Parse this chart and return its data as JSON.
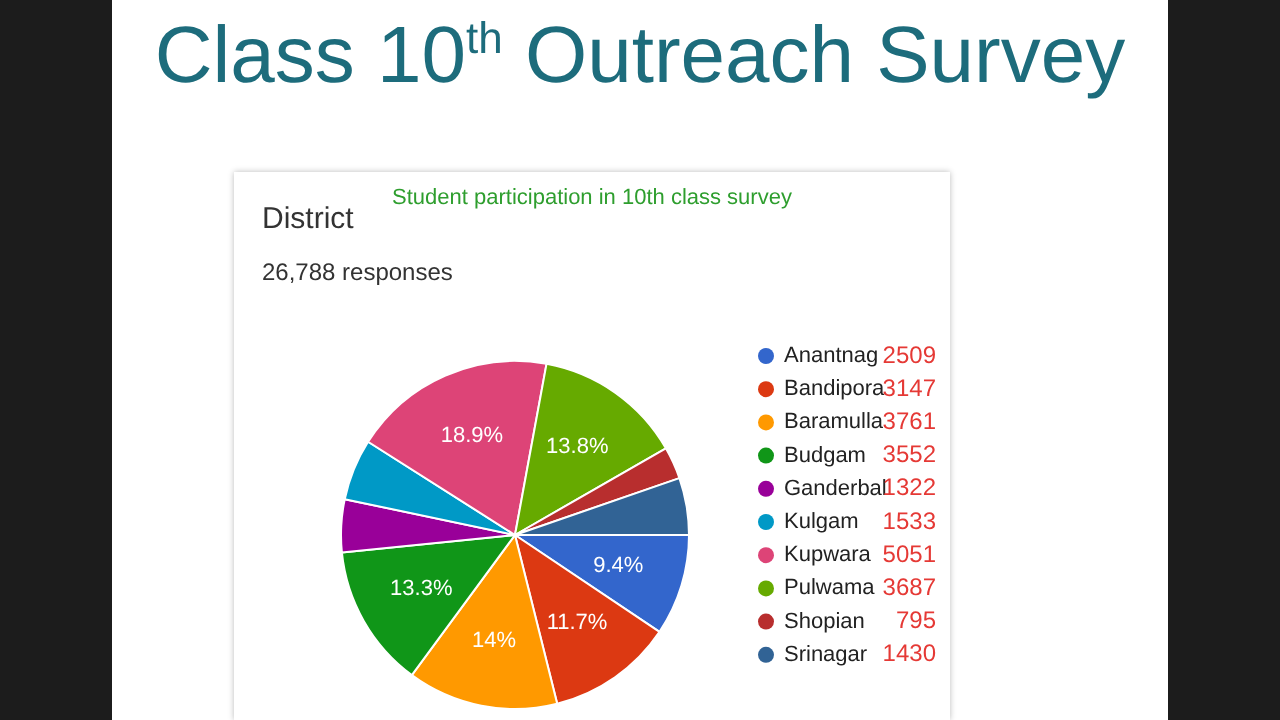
{
  "chart_data": {
    "type": "pie",
    "title": "Class 10$^{th}$ Outreach Survey",
    "subtitle": "Student participation in 10th class survey",
    "annotations": [
      "District",
      "26,788 responses",
      "2509",
      "3147",
      "3761",
      "3552",
      "1322",
      "1533",
      "5051",
      "3687",
      "795",
      "1430"
    ],
    "categories": [
      "Anantnag",
      "Bandipora",
      "Baramulla",
      "Budgam",
      "Ganderbal",
      "Kulgam",
      "Kupwara",
      "Pulwama",
      "Shopian",
      "Srinagar"
    ],
    "values": [
      9.4,
      11.7,
      14,
      13.3,
      4.9,
      5.7,
      18.9,
      13.8,
      3.0,
      5.3
    ],
    "colors": [
      "#3366cc",
      "#dc3912",
      "#ff9900",
      "#109618",
      "#990099",
      "#0099c6",
      "#dd4477",
      "#66aa00",
      "#b82e2e",
      "#316395"
    ],
    "value_labels": [
      "9.4%",
      "11.7%",
      "14%",
      "13.3%",
      null,
      null,
      "18.9%",
      "13.8%",
      null,
      null
    ],
    "legend": "right"
  }
}
